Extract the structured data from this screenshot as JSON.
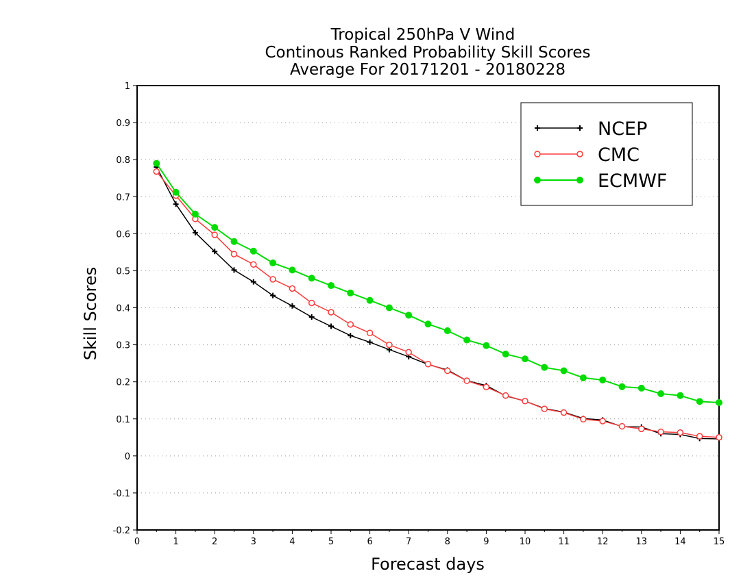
{
  "chart_data": {
    "type": "line",
    "title": [
      "Tropical 250hPa V Wind",
      "Continous Ranked Probability Skill Scores",
      "Average For 20171201 - 20180228"
    ],
    "xlabel": "Forecast days",
    "ylabel": "Skill Scores",
    "xlim": [
      0,
      15
    ],
    "ylim": [
      -0.2,
      1
    ],
    "xticks": [
      0,
      1,
      2,
      3,
      4,
      5,
      6,
      7,
      8,
      9,
      10,
      11,
      12,
      13,
      14,
      15
    ],
    "yticks": [
      -0.2,
      -0.1,
      0,
      0.1,
      0.2,
      0.3,
      0.4,
      0.5,
      0.6,
      0.7,
      0.8,
      0.9,
      1
    ],
    "ytick_labels": [
      "-0.2",
      "-0.1",
      "0",
      "0.1",
      "0.2",
      "0.3",
      "0.4",
      "0.5",
      "0.6",
      "0.7",
      "0.8",
      "0.9",
      "1"
    ],
    "grid": "horizontal dotted",
    "legend_position": "top-right",
    "x": [
      0.5,
      1,
      1.5,
      2,
      2.5,
      3,
      3.5,
      4,
      4.5,
      5,
      5.5,
      6,
      6.5,
      7,
      7.5,
      8,
      8.5,
      9,
      9.5,
      10,
      10.5,
      11,
      11.5,
      12,
      12.5,
      13,
      13.5,
      14,
      14.5,
      15
    ],
    "series": [
      {
        "name": "NCEP",
        "color": "#000000",
        "marker": "plus",
        "values": [
          0.78,
          0.68,
          0.603,
          0.552,
          0.502,
          0.47,
          0.433,
          0.405,
          0.375,
          0.35,
          0.325,
          0.307,
          0.287,
          0.268,
          0.247,
          0.232,
          0.203,
          0.19,
          0.162,
          0.148,
          0.128,
          0.118,
          0.101,
          0.097,
          0.079,
          0.078,
          0.06,
          0.058,
          0.047,
          0.046
        ]
      },
      {
        "name": "CMC",
        "color": "#ff3a3a",
        "marker": "open-circle",
        "values": [
          0.768,
          0.703,
          0.64,
          0.597,
          0.545,
          0.517,
          0.477,
          0.452,
          0.413,
          0.388,
          0.355,
          0.332,
          0.3,
          0.28,
          0.248,
          0.23,
          0.203,
          0.186,
          0.163,
          0.148,
          0.127,
          0.117,
          0.099,
          0.094,
          0.08,
          0.073,
          0.065,
          0.063,
          0.053,
          0.05
        ]
      },
      {
        "name": "ECMWF",
        "color": "#00dc00",
        "marker": "filled-circle",
        "values": [
          0.79,
          0.712,
          0.653,
          0.617,
          0.579,
          0.553,
          0.521,
          0.502,
          0.48,
          0.46,
          0.44,
          0.42,
          0.4,
          0.38,
          0.356,
          0.338,
          0.313,
          0.298,
          0.275,
          0.262,
          0.239,
          0.23,
          0.211,
          0.205,
          0.187,
          0.183,
          0.168,
          0.163,
          0.147,
          0.144
        ]
      }
    ]
  }
}
